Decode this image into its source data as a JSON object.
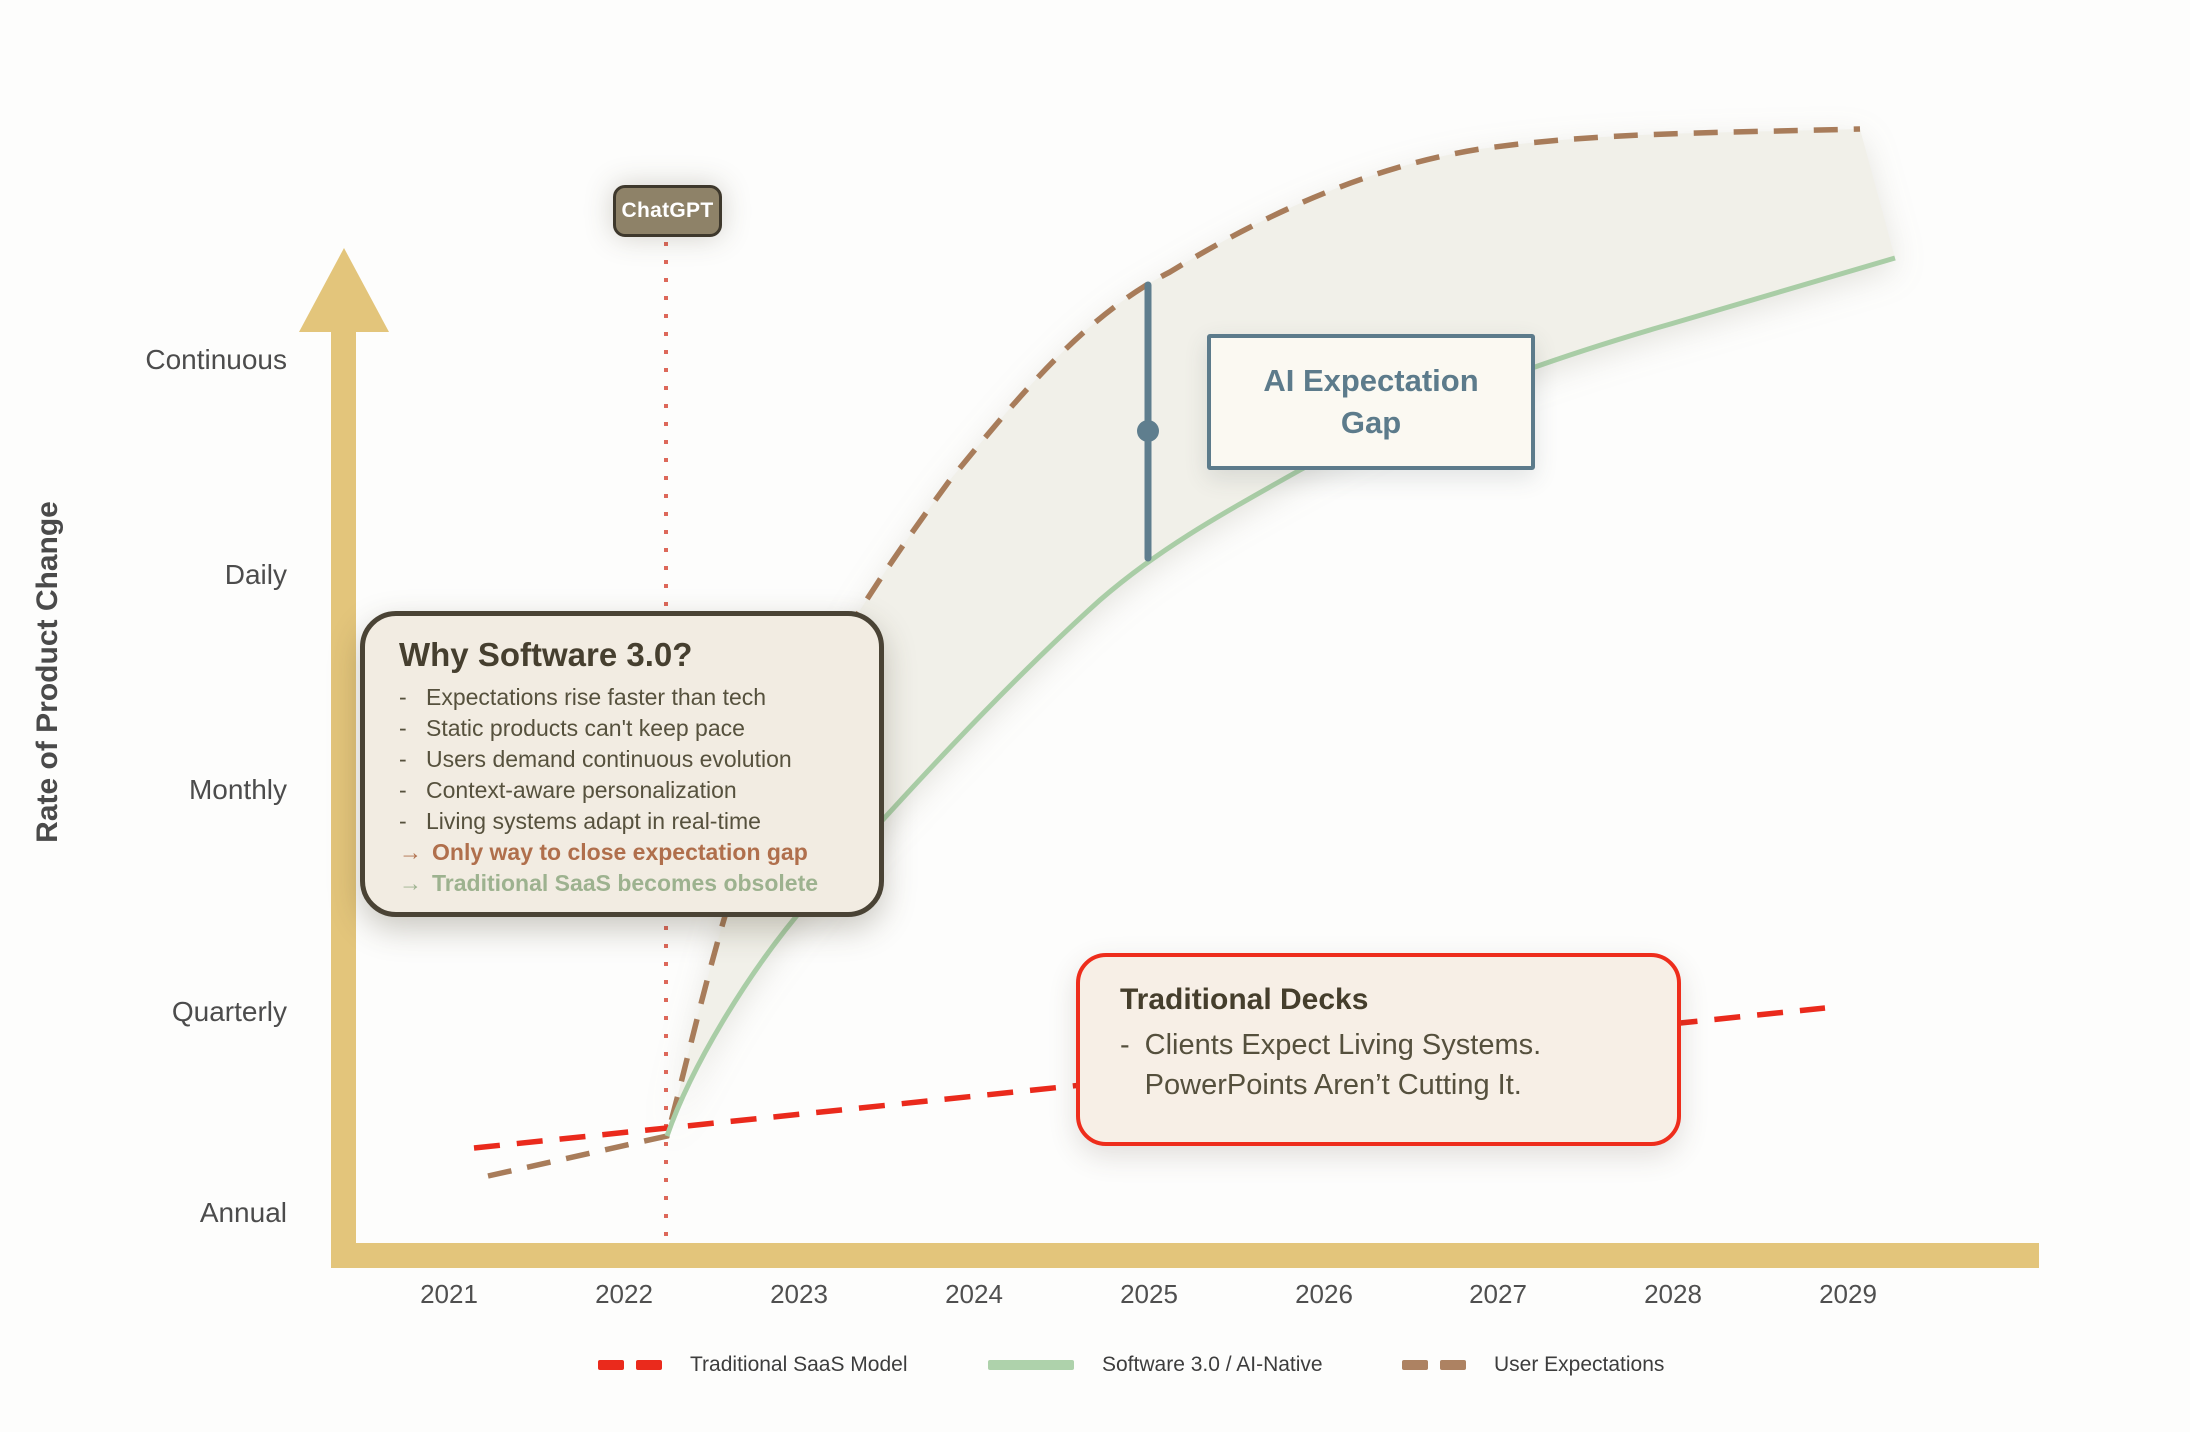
{
  "y_axis": {
    "title": "Rate of Product Change",
    "ticks": [
      "Continuous",
      "Daily",
      "Monthly",
      "Quarterly",
      "Annual"
    ]
  },
  "x_axis": {
    "ticks": [
      "2021",
      "2022",
      "2023",
      "2024",
      "2025",
      "2026",
      "2027",
      "2028",
      "2029"
    ]
  },
  "annotations": {
    "chatgpt_badge": "ChatGPT",
    "gap_label": {
      "line1": "AI Expectation",
      "line2": "Gap"
    },
    "why_box": {
      "title": "Why Software 3.0?",
      "bullets": [
        "Expectations rise faster than tech",
        "Static products can't keep pace",
        "Users demand continuous evolution",
        "Context-aware personalization",
        "Living systems adapt in real-time"
      ],
      "arrows": [
        {
          "text": "Only way to close expectation gap",
          "color": "#b06f4c"
        },
        {
          "text": "Traditional SaaS becomes obsolete",
          "color": "#9db28f"
        }
      ]
    },
    "decks_box": {
      "title": "Traditional Decks",
      "lines": [
        "Clients Expect Living Systems.",
        "PowerPoints Aren’t Cutting It."
      ]
    }
  },
  "legend": [
    {
      "label": "Traditional SaaS Model",
      "color": "#ea2a1c",
      "style": "dashed"
    },
    {
      "label": "Software 3.0 / AI-Native",
      "color": "#aed2ab",
      "style": "solid"
    },
    {
      "label": "User Expectations",
      "color": "#ad8262",
      "style": "dashed"
    }
  ],
  "colors": {
    "axis_gold": "#e3c57b",
    "traditional_saas": "#ea2a1c",
    "software3": "#a9cda6",
    "user_expectations": "#a87c5a",
    "expectation_band": "#f1f0e9",
    "gap_marker": "#5f7e8e",
    "chatgpt_line": "#dd685a"
  },
  "chart_data": {
    "type": "line",
    "title": "",
    "xlabel": "",
    "ylabel": "Rate of Product Change",
    "x": [
      2021,
      2022,
      2023,
      2024,
      2025,
      2026,
      2027,
      2028,
      2029
    ],
    "y_scale_mapping": {
      "1": "Annual",
      "2": "Quarterly",
      "3": "Monthly",
      "4": "Daily",
      "5": "Continuous"
    },
    "ylim": [
      0.8,
      6.2
    ],
    "grid": false,
    "legend_position": "bottom",
    "series": [
      {
        "name": "Traditional SaaS Model",
        "style": "dashed",
        "color": "#ea2a1c",
        "values": [
          1.3,
          1.4,
          1.5,
          1.6,
          1.65,
          1.75,
          1.85,
          1.9,
          2.0
        ]
      },
      {
        "name": "Software 3.0 / AI-Native",
        "style": "solid",
        "color": "#a9cda6",
        "values": [
          null,
          1.4,
          2.3,
          3.3,
          4.1,
          4.55,
          4.9,
          5.2,
          5.45
        ],
        "note": "starts at ChatGPT launch (~2022.25), fills shaded band up to User Expectations"
      },
      {
        "name": "User Expectations",
        "style": "dashed",
        "color": "#a87c5a",
        "values": [
          1.1,
          1.3,
          3.3,
          4.6,
          5.4,
          5.8,
          6.0,
          6.05,
          6.1
        ]
      }
    ],
    "markers": [
      {
        "label": "ChatGPPT-launch-vline",
        "x": 2022.25,
        "type": "dotted-vertical-line"
      },
      {
        "label": "AI Expectation Gap",
        "x": 2025,
        "type": "vertical-gap-marker",
        "between_series": [
          "User Expectations",
          "Software 3.0 / AI-Native"
        ]
      }
    ]
  }
}
